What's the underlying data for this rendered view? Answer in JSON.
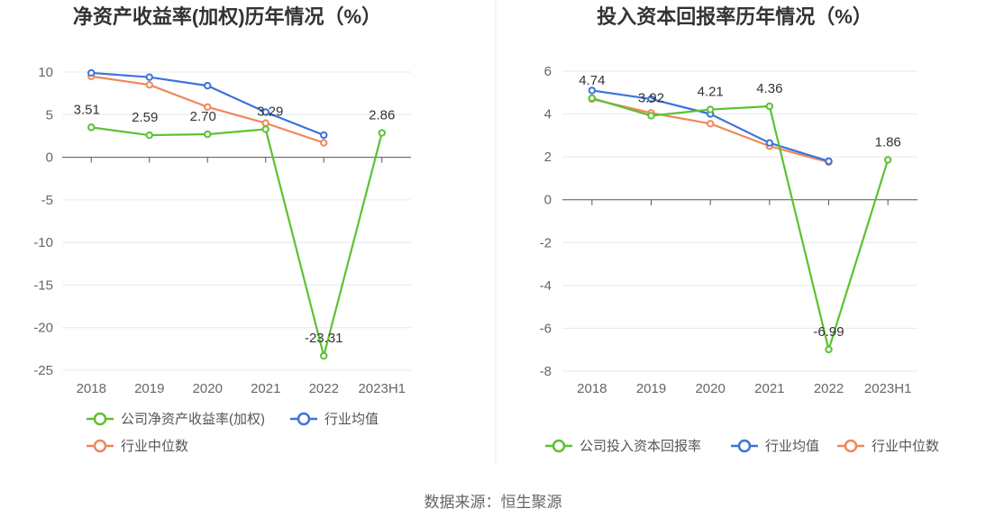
{
  "colors": {
    "company": "#5cc133",
    "industry_avg": "#3b73d9",
    "industry_median": "#f0875a",
    "grid": "#e6e8ef",
    "axis": "#555555",
    "divider": "#eeeeee"
  },
  "source": "数据来源：恒生聚源",
  "chart_data": [
    {
      "type": "line",
      "title": "净资产收益率(加权)历年情况（%）",
      "categories": [
        "2018",
        "2019",
        "2020",
        "2021",
        "2022",
        "2023H1"
      ],
      "ylim": [
        -25,
        10
      ],
      "yticks": [
        10,
        5,
        0,
        -5,
        -10,
        -15,
        -20,
        -25
      ],
      "ytick_labels": [
        "10",
        "5",
        "0",
        "-5",
        "-10",
        "-15",
        "-20",
        "-25"
      ],
      "grid": true,
      "legend_position": "bottom",
      "series": [
        {
          "name": "公司净资产收益率(加权)",
          "color_key": "company",
          "values": [
            3.51,
            2.59,
            2.7,
            3.29,
            -23.31,
            2.86
          ],
          "labels": [
            "3.51",
            "2.59",
            "2.70",
            "3.29",
            "-23.31",
            "2.86"
          ]
        },
        {
          "name": "行业均值",
          "color_key": "industry_avg",
          "values": [
            9.9,
            9.4,
            8.4,
            5.3,
            2.6,
            null
          ]
        },
        {
          "name": "行业中位数",
          "color_key": "industry_median",
          "values": [
            9.5,
            8.5,
            5.9,
            4.0,
            1.7,
            null
          ]
        }
      ]
    },
    {
      "type": "line",
      "title": "投入资本回报率历年情况（%）",
      "categories": [
        "2018",
        "2019",
        "2020",
        "2021",
        "2022",
        "2023H1"
      ],
      "ylim": [
        -8,
        6
      ],
      "yticks": [
        6,
        4,
        2,
        0,
        -2,
        -4,
        -6,
        -8
      ],
      "ytick_labels": [
        "6",
        "4",
        "2",
        "0",
        "-2",
        "-4",
        "-6",
        "-8"
      ],
      "grid": true,
      "legend_position": "bottom",
      "series": [
        {
          "name": "公司投入资本回报率",
          "color_key": "company",
          "values": [
            4.74,
            3.92,
            4.21,
            4.36,
            -6.99,
            1.86
          ],
          "labels": [
            "4.74",
            "3.92",
            "4.21",
            "4.36",
            "-6.99",
            "1.86"
          ]
        },
        {
          "name": "行业均值",
          "color_key": "industry_avg",
          "values": [
            5.1,
            4.7,
            4.0,
            2.65,
            1.8,
            null
          ]
        },
        {
          "name": "行业中位数",
          "color_key": "industry_median",
          "values": [
            4.7,
            4.05,
            3.55,
            2.5,
            1.75,
            null
          ]
        }
      ]
    }
  ]
}
